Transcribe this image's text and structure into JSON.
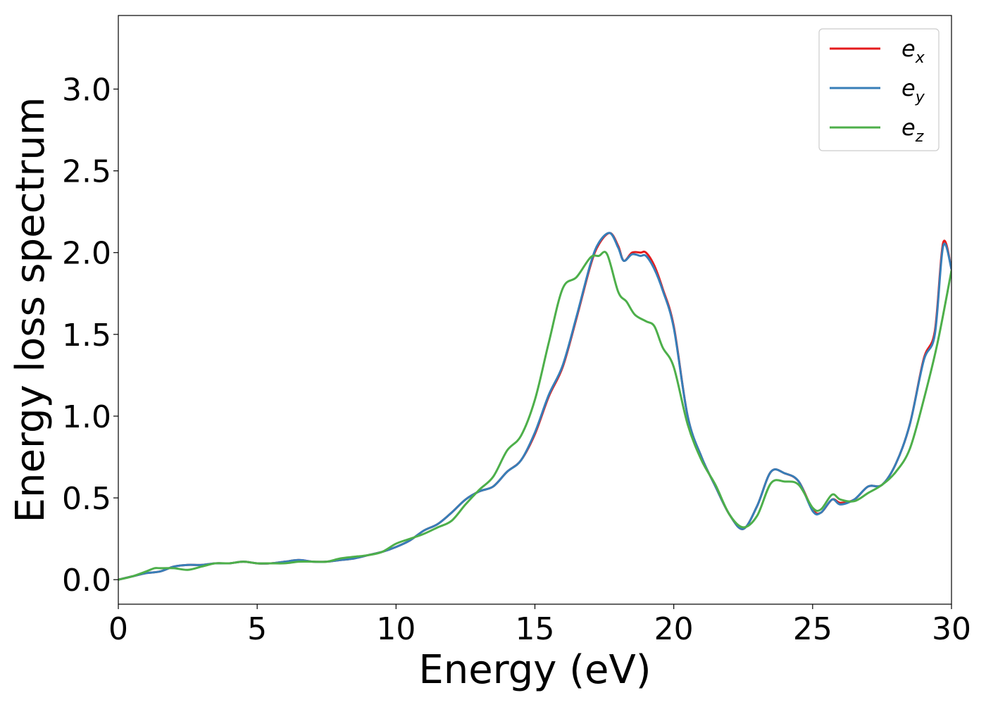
{
  "chart_data": {
    "type": "line",
    "title": "",
    "xlabel": "Energy (eV)",
    "ylabel": "Energy loss spectrum",
    "xlim": [
      0,
      30
    ],
    "ylim": [
      -0.15,
      3.45
    ],
    "xticks": [
      0,
      5,
      10,
      15,
      20,
      25,
      30
    ],
    "xtick_labels": [
      "0",
      "5",
      "10",
      "15",
      "20",
      "25",
      "30"
    ],
    "yticks": [
      0.0,
      0.5,
      1.0,
      1.5,
      2.0,
      2.5,
      3.0
    ],
    "ytick_labels": [
      "0.0",
      "0.5",
      "1.0",
      "1.5",
      "2.0",
      "2.5",
      "3.0"
    ],
    "grid": false,
    "legend_position": "top-right",
    "series": [
      {
        "name": "e_x",
        "legend_base": "e",
        "legend_sub": "x",
        "color": "#e41a1c",
        "x": [
          0,
          0.5,
          1,
          1.5,
          2,
          2.5,
          3,
          3.5,
          4,
          4.5,
          5,
          5.5,
          6,
          6.5,
          7,
          7.5,
          8,
          8.5,
          9,
          9.5,
          10,
          10.5,
          11,
          11.5,
          12,
          12.5,
          13,
          13.5,
          14,
          14.5,
          15,
          15.5,
          16,
          16.5,
          17,
          17.3,
          17.7,
          18,
          18.2,
          18.5,
          18.8,
          19,
          19.3,
          19.6,
          20,
          20.5,
          21,
          21.5,
          22,
          22.5,
          23,
          23.5,
          24,
          24.5,
          25,
          25.3,
          25.7,
          26,
          26.5,
          27,
          27.5,
          28,
          28.5,
          29,
          29.4,
          29.7,
          30
        ],
        "y": [
          0.0,
          0.02,
          0.04,
          0.05,
          0.08,
          0.09,
          0.09,
          0.1,
          0.1,
          0.11,
          0.1,
          0.1,
          0.11,
          0.12,
          0.11,
          0.11,
          0.12,
          0.13,
          0.15,
          0.17,
          0.2,
          0.24,
          0.3,
          0.34,
          0.41,
          0.49,
          0.54,
          0.57,
          0.66,
          0.73,
          0.89,
          1.12,
          1.3,
          1.6,
          1.92,
          2.05,
          2.12,
          2.04,
          1.95,
          2.0,
          2.0,
          2.0,
          1.92,
          1.78,
          1.55,
          1.0,
          0.75,
          0.57,
          0.4,
          0.31,
          0.45,
          0.66,
          0.65,
          0.6,
          0.43,
          0.41,
          0.49,
          0.47,
          0.49,
          0.57,
          0.58,
          0.71,
          0.95,
          1.35,
          1.52,
          2.06,
          1.9
        ]
      },
      {
        "name": "e_y",
        "legend_base": "e",
        "legend_sub": "y",
        "color": "#377eb8",
        "x": [
          0,
          0.5,
          1,
          1.5,
          2,
          2.5,
          3,
          3.5,
          4,
          4.5,
          5,
          5.5,
          6,
          6.5,
          7,
          7.5,
          8,
          8.5,
          9,
          9.5,
          10,
          10.5,
          11,
          11.5,
          12,
          12.5,
          13,
          13.5,
          14,
          14.5,
          15,
          15.5,
          16,
          16.5,
          17,
          17.3,
          17.7,
          18,
          18.2,
          18.5,
          18.8,
          19,
          19.3,
          19.6,
          20,
          20.5,
          21,
          21.5,
          22,
          22.5,
          23,
          23.5,
          24,
          24.5,
          25,
          25.3,
          25.7,
          26,
          26.5,
          27,
          27.5,
          28,
          28.5,
          29,
          29.4,
          29.7,
          30
        ],
        "y": [
          0.0,
          0.02,
          0.04,
          0.05,
          0.08,
          0.09,
          0.09,
          0.1,
          0.1,
          0.11,
          0.1,
          0.1,
          0.11,
          0.12,
          0.11,
          0.11,
          0.12,
          0.13,
          0.15,
          0.17,
          0.2,
          0.24,
          0.3,
          0.34,
          0.41,
          0.49,
          0.54,
          0.57,
          0.66,
          0.73,
          0.9,
          1.13,
          1.31,
          1.61,
          1.93,
          2.06,
          2.12,
          2.03,
          1.95,
          1.99,
          1.98,
          1.98,
          1.9,
          1.77,
          1.54,
          1.0,
          0.75,
          0.57,
          0.4,
          0.31,
          0.45,
          0.66,
          0.65,
          0.6,
          0.42,
          0.41,
          0.49,
          0.46,
          0.49,
          0.57,
          0.58,
          0.71,
          0.95,
          1.34,
          1.5,
          2.04,
          1.9
        ]
      },
      {
        "name": "e_z",
        "legend_base": "e",
        "legend_sub": "z",
        "color": "#4daf4a",
        "x": [
          0,
          0.5,
          1,
          1.3,
          1.5,
          2,
          2.5,
          3,
          3.5,
          4,
          4.5,
          5,
          5.5,
          6,
          6.5,
          7,
          7.5,
          8,
          8.5,
          9,
          9.5,
          10,
          10.5,
          11,
          11.5,
          12,
          12.5,
          13,
          13.5,
          14,
          14.5,
          15,
          15.5,
          16,
          16.5,
          17,
          17.3,
          17.6,
          18,
          18.3,
          18.6,
          19,
          19.3,
          19.6,
          20,
          20.5,
          21,
          21.5,
          22,
          22.5,
          23,
          23.5,
          24,
          24.5,
          25,
          25.3,
          25.7,
          26,
          26.5,
          27,
          27.5,
          28,
          28.5,
          29,
          29.5,
          30
        ],
        "y": [
          0.0,
          0.02,
          0.05,
          0.07,
          0.07,
          0.07,
          0.06,
          0.08,
          0.1,
          0.1,
          0.11,
          0.1,
          0.1,
          0.1,
          0.11,
          0.11,
          0.11,
          0.13,
          0.14,
          0.15,
          0.17,
          0.22,
          0.25,
          0.28,
          0.32,
          0.36,
          0.46,
          0.55,
          0.63,
          0.79,
          0.88,
          1.1,
          1.45,
          1.78,
          1.85,
          1.97,
          1.98,
          1.99,
          1.76,
          1.7,
          1.62,
          1.58,
          1.55,
          1.42,
          1.3,
          0.95,
          0.73,
          0.58,
          0.4,
          0.32,
          0.39,
          0.59,
          0.6,
          0.58,
          0.44,
          0.43,
          0.52,
          0.49,
          0.48,
          0.53,
          0.58,
          0.66,
          0.8,
          1.1,
          1.45,
          1.89
        ]
      }
    ]
  }
}
